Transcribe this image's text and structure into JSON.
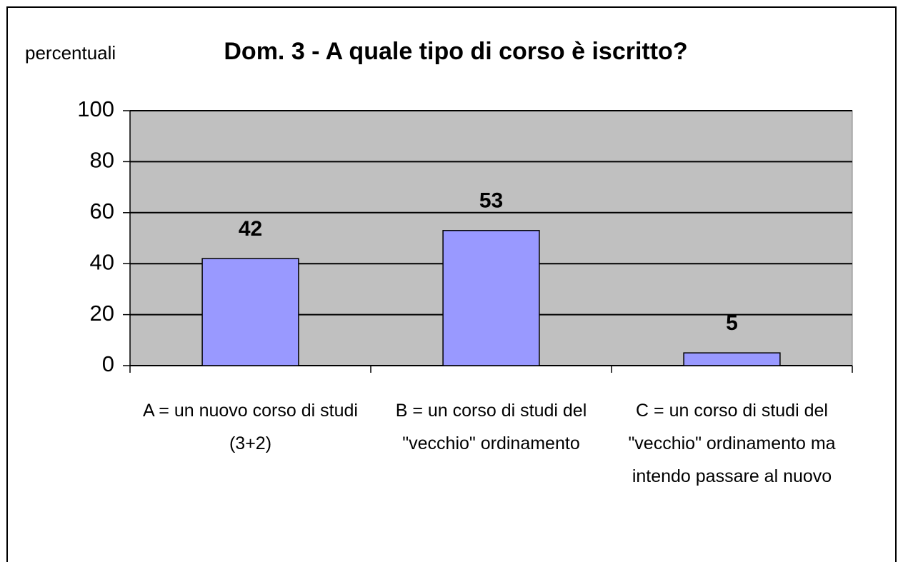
{
  "chart_data": {
    "type": "bar",
    "title": "Dom. 3 - A quale tipo di corso è iscritto?",
    "y_label": "percentuali",
    "categories": [
      "A = un nuovo corso di studi (3+2)",
      "B = un corso di studi del \"vecchio\" ordinamento",
      "C = un corso di studi del \"vecchio\" ordinamento ma intendo passare al nuovo"
    ],
    "values": [
      42,
      53,
      5
    ],
    "color": "#9999ff",
    "ylim": [
      0,
      100
    ],
    "yticks": [
      0,
      20,
      40,
      60,
      80,
      100
    ],
    "grid": true
  }
}
